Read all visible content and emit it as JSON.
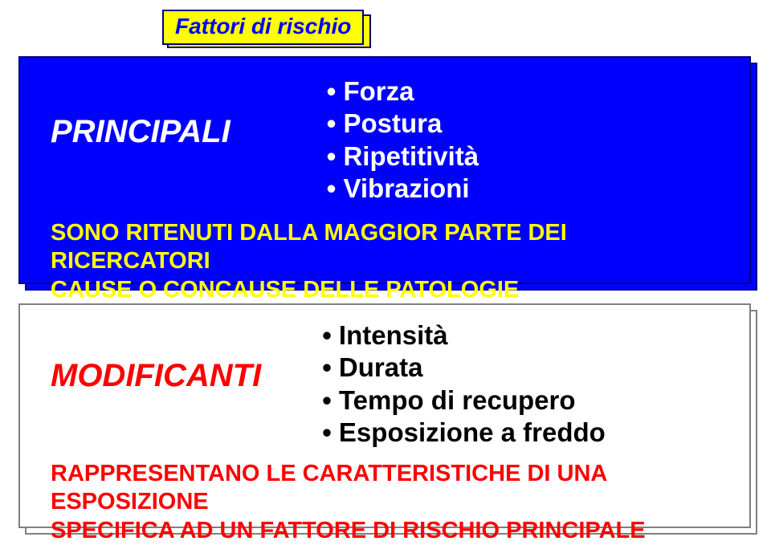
{
  "title": "Fattori di rischio",
  "principali": {
    "heading": "PRINCIPALI",
    "items": [
      "Forza",
      "Postura",
      "Ripetitività",
      "Vibrazioni"
    ],
    "caption_line1": "SONO RITENUTI DALLA MAGGIOR PARTE DEI RICERCATORI",
    "caption_line2": "CAUSE O CONCAUSE DELLE PATOLOGIE"
  },
  "modificanti": {
    "heading": "MODIFICANTI",
    "items": [
      "Intensità",
      "Durata",
      "Tempo di recupero",
      "Esposizione a freddo"
    ],
    "caption_line1": "RAPPRESENTANO LE CARATTERISTICHE DI UNA ESPOSIZIONE",
    "caption_line2": "SPECIFICA AD UN FATTORE DI RISCHIO PRINCIPALE"
  },
  "colors": {
    "blue_bg": "#0000ff",
    "yellow": "#ffff00",
    "dark_border": "#000080",
    "red": "#ff0000",
    "white": "#ffffff",
    "grey_border": "#808080",
    "black": "#000000"
  },
  "fonts": {
    "title_pt": 28,
    "heading_pt": 40,
    "bullet_pt": 33,
    "caption_pt": 29
  }
}
